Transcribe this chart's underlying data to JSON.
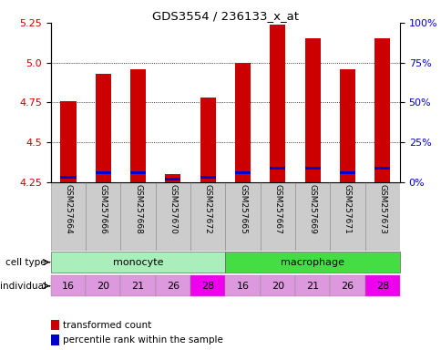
{
  "title": "GDS3554 / 236133_x_at",
  "samples": [
    "GSM257664",
    "GSM257666",
    "GSM257668",
    "GSM257670",
    "GSM257672",
    "GSM257665",
    "GSM257667",
    "GSM257669",
    "GSM257671",
    "GSM257673"
  ],
  "transformed_counts": [
    4.76,
    4.93,
    4.96,
    4.3,
    4.78,
    5.0,
    5.24,
    5.15,
    4.96,
    5.15
  ],
  "percentile_ranks": [
    2,
    5,
    5,
    1,
    2,
    5,
    8,
    8,
    5,
    8
  ],
  "ylim_left": [
    4.25,
    5.25
  ],
  "ylim_right": [
    0,
    100
  ],
  "yticks_left": [
    4.25,
    4.5,
    4.75,
    5.0,
    5.25
  ],
  "yticks_right": [
    0,
    25,
    50,
    75,
    100
  ],
  "ytick_labels_right": [
    "0%",
    "25%",
    "50%",
    "75%",
    "100%"
  ],
  "individuals": [
    "16",
    "20",
    "21",
    "26",
    "28",
    "16",
    "20",
    "21",
    "26",
    "28"
  ],
  "indiv_colors": [
    "#dd99dd",
    "#dd99dd",
    "#dd99dd",
    "#dd99dd",
    "#ee00ee",
    "#dd99dd",
    "#dd99dd",
    "#dd99dd",
    "#dd99dd",
    "#ee00ee"
  ],
  "mono_color": "#aaeebb",
  "macro_color": "#44dd44",
  "bar_color_red": "#cc0000",
  "bar_color_blue": "#0000cc",
  "bar_width": 0.45,
  "base_value": 4.25,
  "legend_red": "transformed count",
  "legend_blue": "percentile rank within the sample",
  "gridlines": [
    4.5,
    4.75,
    5.0
  ],
  "tick_color_left": "#cc0000",
  "tick_color_right": "#0000cc"
}
